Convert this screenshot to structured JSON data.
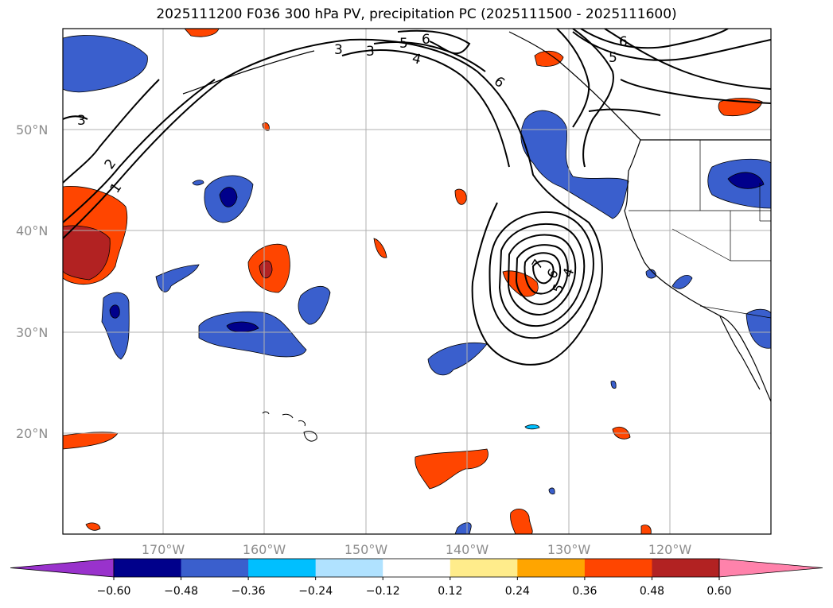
{
  "title": "2025111200 F036 300 hPa PV, precipitation PC (2025111500 - 2025111600)",
  "lat_labels": [
    "50°N",
    "40°N",
    "30°N",
    "20°N"
  ],
  "lon_labels": [
    "170°W",
    "160°W",
    "150°W",
    "140°W",
    "130°W",
    "120°W"
  ],
  "pv_contour_labels": [
    "1",
    "2",
    "3",
    "3",
    "3",
    "4",
    "5",
    "6",
    "4",
    "5",
    "6",
    "7",
    "6",
    "5",
    "6"
  ],
  "colorbar": {
    "ticks": [
      "−0.60",
      "−0.48",
      "−0.36",
      "−0.24",
      "−0.12",
      "0.12",
      "0.24",
      "0.36",
      "0.48",
      "0.60"
    ],
    "colors": [
      "#9932cc",
      "#00008b",
      "#3a5fcd",
      "#00bfff",
      "#b0e2ff",
      "#ffffff",
      "#ffec8b",
      "#ffa500",
      "#ff4500",
      "#b22222",
      "#ff82ab"
    ]
  },
  "fill_colors": {
    "neg_light": "#00bfff",
    "neg_mid": "#3a5fcd",
    "neg_dark": "#00008b",
    "pos_light": "#ffd700",
    "pos_mid": "#ff4500",
    "pos_dark": "#b22222"
  }
}
